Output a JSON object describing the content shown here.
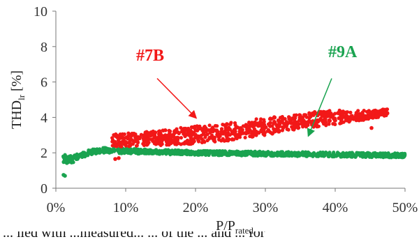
{
  "chart_data": {
    "type": "scatter",
    "ylabel": "THD",
    "ylabel_sub": "lr",
    "ylabel_suffix": " [%]",
    "xlabel": "P/P",
    "xlabel_sub": "rated",
    "ylim": [
      0,
      10
    ],
    "yticks": [
      "0",
      "2",
      "4",
      "6",
      "8",
      "10"
    ],
    "xlim": [
      0,
      50
    ],
    "xticks": [
      "0%",
      "10%",
      "20%",
      "30%",
      "40%",
      "50%"
    ],
    "grid": false,
    "series": [
      {
        "name": "#7B",
        "color": "#f21818",
        "trend": [
          [
            8,
            2.7
          ],
          [
            12,
            2.75
          ],
          [
            16,
            2.9
          ],
          [
            20,
            3.0
          ],
          [
            25,
            3.2
          ],
          [
            30,
            3.5
          ],
          [
            35,
            3.8
          ],
          [
            40,
            4.0
          ],
          [
            45,
            4.15
          ],
          [
            47.5,
            4.3
          ]
        ],
        "spread": [
          [
            8,
            0.7
          ],
          [
            20,
            1.0
          ],
          [
            30,
            1.0
          ],
          [
            40,
            0.8
          ],
          [
            47.5,
            0.35
          ]
        ],
        "outliers": [
          [
            8.5,
            1.65
          ],
          [
            9.0,
            1.7
          ],
          [
            45.2,
            3.4
          ]
        ]
      },
      {
        "name": "#9A",
        "color": "#1aa350",
        "trend": [
          [
            1,
            1.7
          ],
          [
            2,
            1.6
          ],
          [
            3,
            1.75
          ],
          [
            5,
            2.05
          ],
          [
            7,
            2.15
          ],
          [
            10,
            2.1
          ],
          [
            15,
            2.05
          ],
          [
            20,
            2.0
          ],
          [
            30,
            1.95
          ],
          [
            40,
            1.9
          ],
          [
            50,
            1.85
          ]
        ],
        "spread": [
          [
            1,
            0.5
          ],
          [
            5,
            0.3
          ],
          [
            20,
            0.25
          ],
          [
            50,
            0.25
          ]
        ],
        "outliers": [
          [
            1.1,
            0.75
          ],
          [
            1.3,
            0.7
          ]
        ]
      }
    ],
    "annotations": [
      {
        "label": "#7B",
        "color": "#f21818",
        "text_at": [
          11.5,
          7.2
        ],
        "arrow_from": [
          14.5,
          6.2
        ],
        "arrow_to": [
          20.0,
          4.0
        ]
      },
      {
        "label": "#9A",
        "color": "#1aa350",
        "text_at": [
          39.0,
          7.4
        ],
        "arrow_from": [
          39.5,
          6.2
        ],
        "arrow_to": [
          36.2,
          3.0
        ]
      }
    ]
  },
  "caption_fragment": "... lied with ...measured... ... of the ... and ... for"
}
